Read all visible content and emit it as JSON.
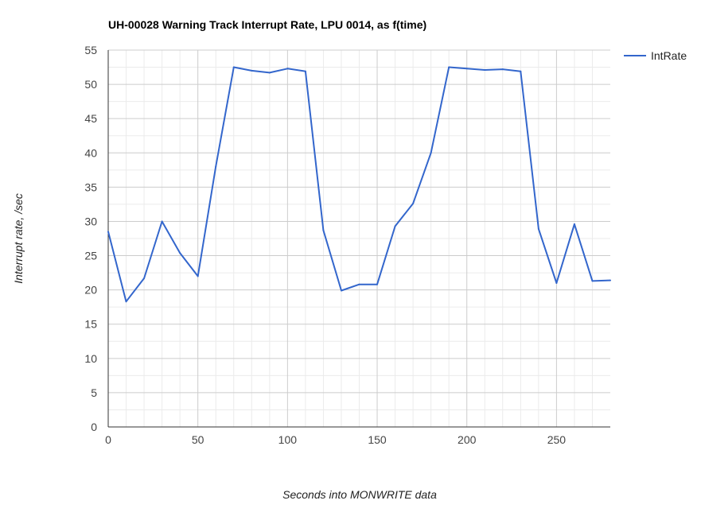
{
  "chart_data": {
    "type": "line",
    "title": "UH-00028 Warning Track Interrupt Rate, LPU 0014, as f(time)",
    "xlabel": "Seconds into MONWRITE data",
    "ylabel": "Interrupt rate, /sec",
    "xlim": [
      0,
      280
    ],
    "ylim": [
      0,
      55
    ],
    "x_ticks": [
      0,
      50,
      100,
      150,
      200,
      250
    ],
    "y_ticks": [
      0,
      5,
      10,
      15,
      20,
      25,
      30,
      35,
      40,
      45,
      50,
      55
    ],
    "grid": true,
    "legend_position": "right",
    "series": [
      {
        "name": "IntRate",
        "color": "#3366cc",
        "x": [
          0,
          10,
          20,
          30,
          40,
          50,
          60,
          70,
          80,
          90,
          100,
          110,
          120,
          130,
          140,
          150,
          160,
          170,
          180,
          190,
          200,
          210,
          220,
          230,
          240,
          250,
          260,
          270,
          280
        ],
        "y": [
          28.5,
          18.3,
          21.7,
          30.0,
          25.4,
          22.0,
          38.0,
          52.5,
          52.0,
          51.7,
          52.3,
          51.9,
          28.7,
          19.9,
          20.8,
          20.8,
          29.3,
          32.6,
          40.0,
          52.5,
          52.3,
          52.1,
          52.2,
          51.9,
          28.9,
          21.0,
          29.6,
          21.3,
          21.4
        ]
      }
    ]
  }
}
